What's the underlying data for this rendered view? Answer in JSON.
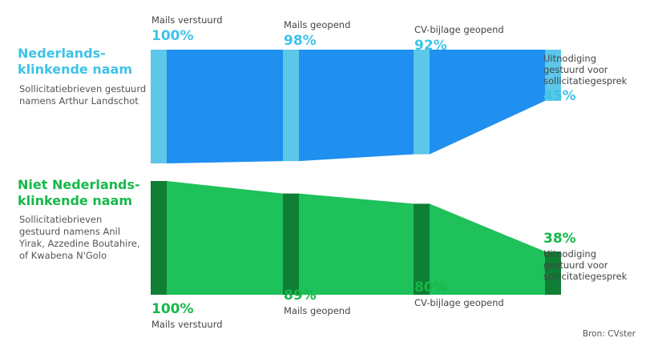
{
  "chart_data": {
    "type": "funnel",
    "groups": [
      {
        "title": "Nederlands-klinkende naam",
        "title_lines": [
          "Nederlands-",
          "klinkende naam"
        ],
        "subtitle_lines": [
          "Sollicitatiebrieven gestuurd",
          "namens Arthur Landschot"
        ],
        "accent_color": "#3ec3e8",
        "fill_color": "#1f8ff0",
        "marker_color": "#5cc7e8",
        "stages": [
          {
            "label_lines": [
              "Mails verstuurd"
            ],
            "value": 100,
            "value_label": "100%"
          },
          {
            "label_lines": [
              "Mails geopend"
            ],
            "value": 98,
            "value_label": "98%"
          },
          {
            "label_lines": [
              "CV-bijlage geopend"
            ],
            "value": 92,
            "value_label": "92%"
          },
          {
            "label_lines": [
              "Uitnodiging",
              "gestuurd voor",
              "sollicitatiegesprek"
            ],
            "value": 45,
            "value_label": "45%"
          }
        ]
      },
      {
        "title": "Niet Nederlands-klinkende naam",
        "title_lines": [
          "Niet Nederlands-",
          "klinkende naam"
        ],
        "subtitle_lines": [
          "Sollicitatiebrieven",
          "gestuurd namens Anil",
          "Yirak,  Azzedine Boutahire,",
          "of Kwabena N'Golo"
        ],
        "accent_color": "#17b84a",
        "fill_color": "#1ec15a",
        "marker_color": "#0e7f35",
        "stages": [
          {
            "label_lines": [
              "Mails verstuurd"
            ],
            "value": 100,
            "value_label": "100%"
          },
          {
            "label_lines": [
              "Mails geopend"
            ],
            "value": 89,
            "value_label": "89%"
          },
          {
            "label_lines": [
              "CV-bijlage geopend"
            ],
            "value": 80,
            "value_label": "80%"
          },
          {
            "label_lines": [
              "Uitnodiging",
              "gestuurd voor",
              "sollicitatiegesprek"
            ],
            "value": 38,
            "value_label": "38%"
          }
        ]
      }
    ],
    "source": "Bron: CVster"
  }
}
